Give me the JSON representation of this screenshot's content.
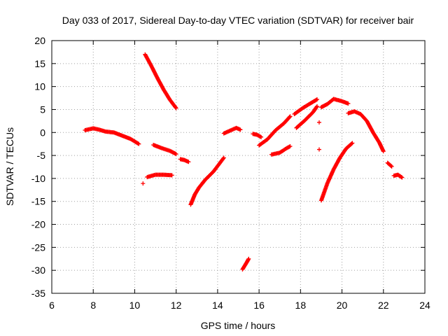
{
  "chart_data": {
    "type": "scatter",
    "title": "Day 033 of 2017, Sidereal Day-to-day VTEC variation (SDTVAR) for receiver bair",
    "xlabel": "GPS time / hours",
    "ylabel": "SDTVAR / TECUs",
    "xlim": [
      6,
      24
    ],
    "ylim": [
      -35,
      20
    ],
    "xticks": [
      6,
      8,
      10,
      12,
      14,
      16,
      18,
      20,
      22,
      24
    ],
    "yticks": [
      -35,
      -30,
      -25,
      -20,
      -15,
      -10,
      -5,
      0,
      5,
      10,
      15,
      20
    ],
    "grid": true,
    "marker": "+",
    "color": "#ff0000",
    "segments": [
      {
        "x": [
          7.6,
          8.0,
          8.3,
          8.6,
          9.0,
          9.4,
          9.8,
          10.2
        ],
        "y": [
          0.5,
          0.9,
          0.6,
          0.2,
          0.0,
          -0.7,
          -1.4,
          -2.5
        ]
      },
      {
        "x": [
          10.5,
          10.8,
          11.1,
          11.4,
          11.7,
          12.0
        ],
        "y": [
          17.0,
          14.5,
          11.8,
          9.3,
          7.1,
          5.3
        ]
      },
      {
        "x": [
          10.6,
          11.0,
          11.4,
          11.8
        ],
        "y": [
          -9.7,
          -9.2,
          -9.2,
          -9.3
        ]
      },
      {
        "x": [
          10.9,
          11.3,
          11.7,
          12.0
        ],
        "y": [
          -2.7,
          -3.4,
          -4.0,
          -4.7
        ]
      },
      {
        "x": [
          12.2,
          12.4,
          12.6
        ],
        "y": [
          -5.8,
          -6.0,
          -6.4
        ]
      },
      {
        "x": [
          12.7,
          12.9,
          13.1,
          13.4,
          13.8,
          14.3
        ],
        "y": [
          -15.7,
          -13.5,
          -12.0,
          -10.3,
          -8.5,
          -5.5
        ]
      },
      {
        "x": [
          14.3,
          14.6,
          14.9,
          15.1
        ],
        "y": [
          -0.2,
          0.4,
          1.0,
          0.6
        ]
      },
      {
        "x": [
          15.2,
          15.4,
          15.5
        ],
        "y": [
          -29.8,
          -28.3,
          -27.5
        ]
      },
      {
        "x": [
          15.7,
          15.9,
          16.1
        ],
        "y": [
          -0.3,
          -0.5,
          -1.0
        ]
      },
      {
        "x": [
          16.0,
          16.4,
          16.8,
          17.2,
          17.5
        ],
        "y": [
          -2.8,
          -1.5,
          0.5,
          2.0,
          3.5
        ]
      },
      {
        "x": [
          16.6,
          17.0,
          17.3,
          17.5
        ],
        "y": [
          -4.8,
          -4.4,
          -3.5,
          -3.0
        ]
      },
      {
        "x": [
          17.7,
          18.1,
          18.5,
          18.8
        ],
        "y": [
          4.0,
          5.3,
          6.4,
          7.2
        ]
      },
      {
        "x": [
          17.8,
          18.2,
          18.6,
          18.8
        ],
        "y": [
          1.0,
          2.6,
          4.4,
          5.7
        ]
      },
      {
        "x": [
          19.0,
          19.3,
          19.6,
          20.0,
          20.3
        ],
        "y": [
          5.5,
          6.2,
          7.3,
          6.8,
          6.3
        ]
      },
      {
        "x": [
          19.0,
          19.3,
          19.6,
          19.9,
          20.2,
          20.5
        ],
        "y": [
          -14.8,
          -11.0,
          -8.0,
          -5.5,
          -3.5,
          -2.3
        ]
      },
      {
        "x": [
          20.3,
          20.6,
          20.9,
          21.2,
          21.5,
          21.8,
          22.0
        ],
        "y": [
          4.2,
          4.6,
          4.0,
          2.5,
          0.0,
          -2.2,
          -4.1
        ]
      },
      {
        "x": [
          22.2,
          22.4
        ],
        "y": [
          -6.6,
          -7.4
        ]
      },
      {
        "x": [
          22.5,
          22.7,
          22.9
        ],
        "y": [
          -9.4,
          -9.2,
          -9.8
        ]
      }
    ],
    "isolated_points": [
      {
        "x": 10.4,
        "y": -11.1
      },
      {
        "x": 18.9,
        "y": 2.2
      },
      {
        "x": 18.9,
        "y": -3.7
      }
    ]
  }
}
